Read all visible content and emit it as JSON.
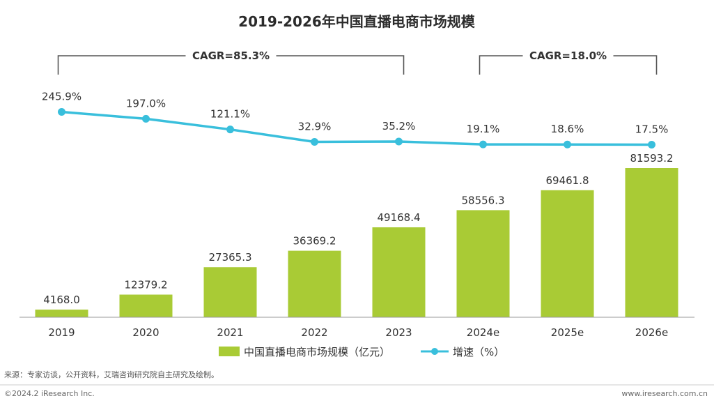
{
  "chart_data": {
    "type": "bar",
    "title": "2019-2026年中国直播电商市场规模",
    "categories": [
      "2019",
      "2020",
      "2021",
      "2022",
      "2023",
      "2024e",
      "2025e",
      "2026e"
    ],
    "series": [
      {
        "name": "中国直播电商市场规模（亿元）",
        "type": "bar",
        "values": [
          4168.0,
          12379.2,
          27365.3,
          36369.2,
          49168.4,
          58556.3,
          69461.8,
          81593.2
        ],
        "labels": [
          "4168.0",
          "12379.2",
          "27365.3",
          "36369.2",
          "49168.4",
          "58556.3",
          "69461.8",
          "81593.2"
        ]
      },
      {
        "name": "增速（%）",
        "type": "line",
        "values": [
          245.9,
          197.0,
          121.1,
          32.9,
          35.2,
          19.1,
          18.6,
          17.5
        ],
        "labels": [
          "245.9%",
          "197.0%",
          "121.1%",
          "32.9%",
          "35.2%",
          "19.1%",
          "18.6%",
          "17.5%"
        ]
      }
    ],
    "annotations": [
      {
        "text": "CAGR=85.3%",
        "from": "2019",
        "to": "2023"
      },
      {
        "text": "CAGR=18.0%",
        "from": "2024e",
        "to": "2026e"
      }
    ],
    "legend_position": "bottom",
    "grid": false,
    "colors": {
      "bar": "#a9cb35",
      "line": "#39bfdc"
    }
  },
  "source_note": "来源：专家访谈，公开资料，艾瑞咨询研究院自主研究及绘制。",
  "copyright": "©2024.2 iResearch Inc.",
  "website": "www.iresearch.com.cn"
}
